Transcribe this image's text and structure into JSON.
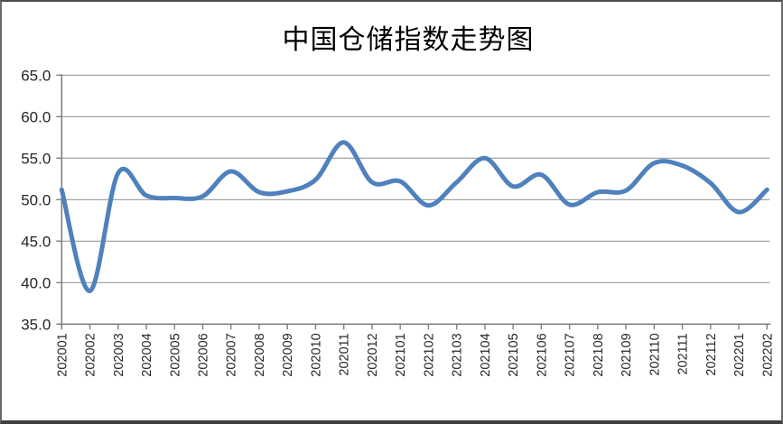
{
  "window": {
    "background": "#ffffff",
    "border_color": "#595959"
  },
  "chart_data": {
    "type": "line",
    "title": "中国仓储指数走势图",
    "categories": [
      "202001",
      "202002",
      "202003",
      "202004",
      "202005",
      "202006",
      "202007",
      "202008",
      "202009",
      "202010",
      "202011",
      "202012",
      "202101",
      "202102",
      "202103",
      "202104",
      "202105",
      "202106",
      "202107",
      "202108",
      "202109",
      "202110",
      "202111",
      "202112",
      "202201",
      "202202"
    ],
    "values": [
      51.2,
      39.0,
      53.2,
      50.5,
      50.2,
      50.4,
      53.4,
      50.9,
      51.0,
      52.4,
      56.9,
      52.1,
      52.2,
      49.3,
      52.1,
      55.0,
      51.6,
      53.0,
      49.4,
      50.9,
      51.1,
      54.4,
      54.1,
      52.0,
      48.5,
      51.2
    ],
    "yticks": [
      "65.0",
      "60.0",
      "55.0",
      "50.0",
      "45.0",
      "40.0",
      "35.0"
    ],
    "ylim": [
      35,
      65
    ],
    "ytick_step": 5,
    "grid": "horizontal",
    "legend": "none",
    "smooth": true,
    "colors": {
      "line": "#4F81BD",
      "grid": "#9a9a9a",
      "axis": "#808080",
      "tick_label": "#262626",
      "title": "#000000"
    }
  }
}
